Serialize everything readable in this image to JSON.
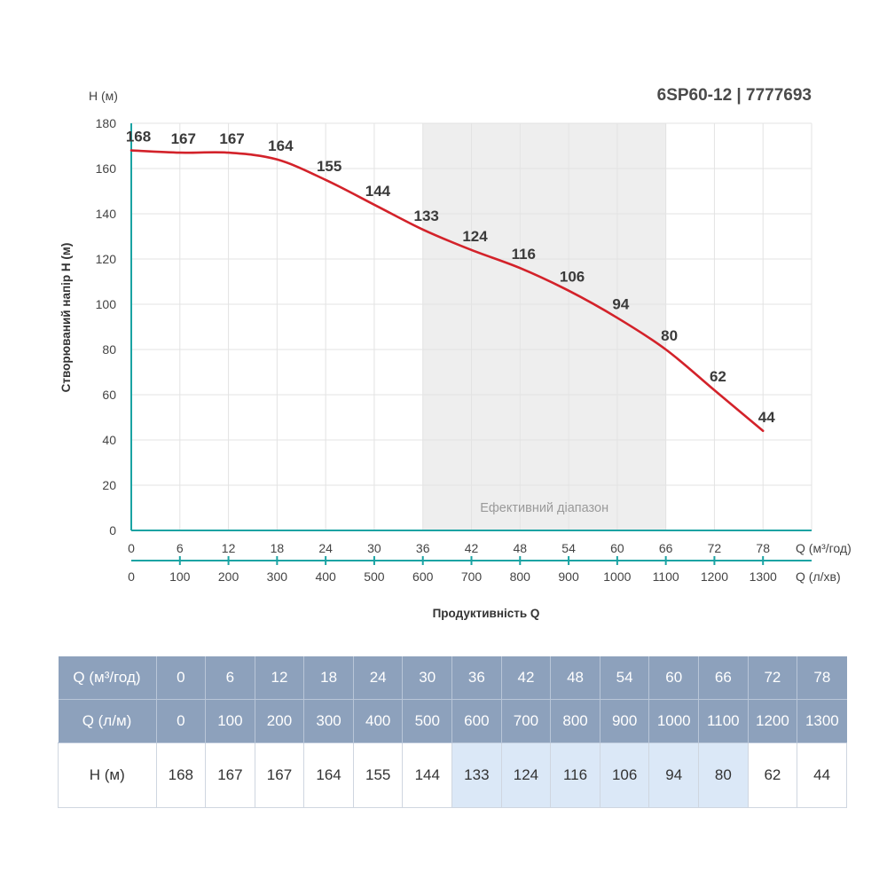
{
  "chart_data": {
    "type": "line",
    "title": "6SP60-12 | 7777693",
    "ylabel": "Створюваний напір H (м)",
    "y_unit": "H (м)",
    "xlabel": "Продуктивність Q",
    "x_unit_primary": "Q (м³/год)",
    "x_unit_secondary": "Q (л/хв)",
    "ylim": [
      0,
      180
    ],
    "yticks": [
      0,
      20,
      40,
      60,
      80,
      100,
      120,
      140,
      160,
      180
    ],
    "x_primary": [
      0,
      6,
      12,
      18,
      24,
      30,
      36,
      42,
      48,
      54,
      60,
      66,
      72,
      78
    ],
    "x_secondary": [
      0,
      100,
      200,
      300,
      400,
      500,
      600,
      700,
      800,
      900,
      1000,
      1100,
      1200,
      1300
    ],
    "xlim": [
      0,
      84
    ],
    "grid": true,
    "series": [
      {
        "values": [
          168,
          167,
          167,
          164,
          155,
          144,
          133,
          124,
          116,
          106,
          94,
          80,
          62,
          44
        ],
        "color": "#d3222a"
      }
    ],
    "efficient_range": {
      "from": 36,
      "to": 66,
      "label": "Ефективний діапазон"
    },
    "colors": {
      "line": "#d3222a",
      "axis": "#1aa3a3",
      "band": "#eeeeee",
      "grid": "#e3e3e3"
    }
  },
  "table": {
    "row_labels": [
      "Q (м³/год)",
      "Q (л/м)",
      "H (м)"
    ],
    "q_m3h": [
      "0",
      "6",
      "12",
      "18",
      "24",
      "30",
      "36",
      "42",
      "48",
      "54",
      "60",
      "66",
      "72",
      "78"
    ],
    "q_lm": [
      "0",
      "100",
      "200",
      "300",
      "400",
      "500",
      "600",
      "700",
      "800",
      "900",
      "1000",
      "1100",
      "1200",
      "1300"
    ],
    "h_m": [
      "168",
      "167",
      "167",
      "164",
      "155",
      "144",
      "133",
      "124",
      "116",
      "106",
      "94",
      "80",
      "62",
      "44"
    ],
    "highlight_columns": [
      6,
      7,
      8,
      9,
      10,
      11
    ],
    "colors": {
      "header_bg": "#8da1bc",
      "highlight_bg": "#dbe8f7"
    }
  }
}
